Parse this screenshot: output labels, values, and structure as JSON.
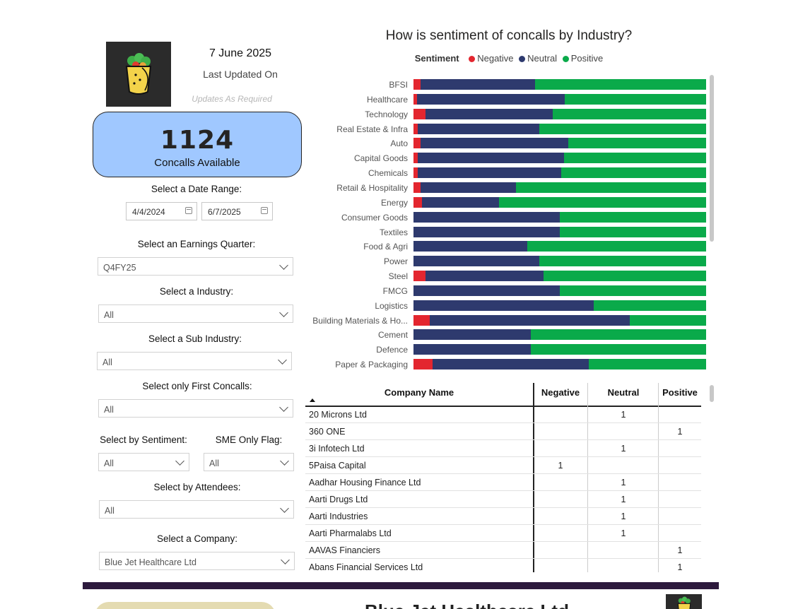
{
  "header": {
    "date": "7 June 2025",
    "last_updated_label": "Last Updated On",
    "updates_note": "Updates As Required"
  },
  "kpi": {
    "value": "1124",
    "label": "Concalls Available"
  },
  "filters": {
    "date_range": {
      "title": "Select a Date Range:",
      "start": "4/4/2024",
      "end": "6/7/2025"
    },
    "earnings_quarter": {
      "title": "Select an Earnings Quarter:",
      "value": "Q4FY25"
    },
    "industry": {
      "title": "Select a Industry:",
      "value": "All"
    },
    "sub_industry": {
      "title": "Select a Sub Industry:",
      "value": "All"
    },
    "first_concalls": {
      "title": "Select only First Concalls:",
      "value": "All"
    },
    "sentiment": {
      "title": "Select by Sentiment:",
      "value": "All"
    },
    "sme_flag": {
      "title": "SME Only Flag:",
      "value": "All"
    },
    "attendees": {
      "title": "Select by Attendees:",
      "value": "All"
    },
    "company": {
      "title": "Select a Company:",
      "value": "Blue Jet Healthcare Ltd"
    }
  },
  "colors": {
    "negative": "#e3262f",
    "neutral": "#2e3a6e",
    "positive": "#0aaa4a"
  },
  "chart_data": {
    "type": "bar",
    "orientation": "horizontal",
    "stacking": "percent",
    "title": "How is sentiment of concalls by Industry?",
    "legend_title": "Sentiment",
    "legend_position": "top",
    "categories": [
      "BFSI",
      "Healthcare",
      "Technology",
      "Real Estate & Infra",
      "Auto",
      "Capital Goods",
      "Chemicals",
      "Retail & Hospitality",
      "Energy",
      "Consumer Goods",
      "Textiles",
      "Food & Agri",
      "Power",
      "Steel",
      "FMCG",
      "Logistics",
      "Building Materials & Ho...",
      "Cement",
      "Defence",
      "Paper & Packaging"
    ],
    "series": [
      {
        "name": "Negative",
        "values": [
          2.5,
          1.2,
          4,
          1.5,
          2.5,
          1.5,
          1.5,
          2.5,
          2.8,
          0,
          0,
          0,
          0,
          4,
          0,
          0,
          5.5,
          0,
          0,
          6.5
        ]
      },
      {
        "name": "Neutral",
        "values": [
          39,
          50.5,
          43.5,
          41.5,
          50.5,
          50,
          49,
          32.5,
          26.5,
          50,
          50,
          39,
          43,
          40.5,
          50,
          61.5,
          68.5,
          40,
          40,
          53.5
        ]
      },
      {
        "name": "Positive",
        "values": [
          58.5,
          48.3,
          52.5,
          57,
          47,
          48.5,
          49.5,
          65,
          70.7,
          50,
          50,
          61,
          57,
          55.5,
          50,
          38.5,
          26,
          60,
          60,
          40
        ]
      }
    ],
    "xlim": [
      0,
      100
    ]
  },
  "table": {
    "columns": [
      "Company Name",
      "Negative",
      "Neutral",
      "Positive"
    ],
    "rows": [
      {
        "name": "20 Microns Ltd",
        "neg": "",
        "neu": "1",
        "pos": ""
      },
      {
        "name": "360 ONE",
        "neg": "",
        "neu": "",
        "pos": "1"
      },
      {
        "name": "3i Infotech Ltd",
        "neg": "",
        "neu": "1",
        "pos": ""
      },
      {
        "name": "5Paisa Capital",
        "neg": "1",
        "neu": "",
        "pos": ""
      },
      {
        "name": "Aadhar Housing Finance Ltd",
        "neg": "",
        "neu": "1",
        "pos": ""
      },
      {
        "name": "Aarti Drugs Ltd",
        "neg": "",
        "neu": "1",
        "pos": ""
      },
      {
        "name": "Aarti Industries",
        "neg": "",
        "neu": "1",
        "pos": ""
      },
      {
        "name": "Aarti Pharmalabs Ltd",
        "neg": "",
        "neu": "1",
        "pos": ""
      },
      {
        "name": "AAVAS Financiers",
        "neg": "",
        "neu": "",
        "pos": "1"
      },
      {
        "name": "Abans Financial Services Ltd",
        "neg": "",
        "neu": "",
        "pos": "1"
      }
    ]
  },
  "bottom": {
    "title": "Blue Jet Healthcare Ltd"
  }
}
